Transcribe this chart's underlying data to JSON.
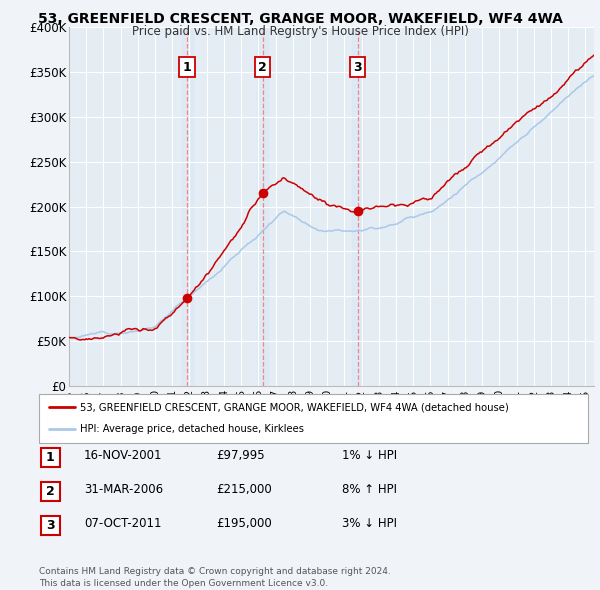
{
  "title": "53, GREENFIELD CRESCENT, GRANGE MOOR, WAKEFIELD, WF4 4WA",
  "subtitle": "Price paid vs. HM Land Registry's House Price Index (HPI)",
  "ylim": [
    0,
    400000
  ],
  "yticks": [
    0,
    50000,
    100000,
    150000,
    200000,
    250000,
    300000,
    350000,
    400000
  ],
  "ytick_labels": [
    "£0",
    "£50K",
    "£100K",
    "£150K",
    "£200K",
    "£250K",
    "£300K",
    "£350K",
    "£400K"
  ],
  "xlim_start": 1995.0,
  "xlim_end": 2025.5,
  "xtick_years": [
    1995,
    1996,
    1997,
    1998,
    1999,
    2000,
    2001,
    2002,
    2003,
    2004,
    2005,
    2006,
    2007,
    2008,
    2009,
    2010,
    2011,
    2012,
    2013,
    2014,
    2015,
    2016,
    2017,
    2018,
    2019,
    2020,
    2021,
    2022,
    2023,
    2024,
    2025
  ],
  "sale_dates": [
    2001.877,
    2006.247,
    2011.769
  ],
  "sale_prices": [
    97995,
    215000,
    195000
  ],
  "sale_labels": [
    "1",
    "2",
    "3"
  ],
  "vline_color": "#ee8888",
  "dot_color": "#cc0000",
  "hpi_line_color": "#aac8e8",
  "price_line_color": "#cc0000",
  "bg_color": "#f0f4f8",
  "plot_bg": "#e4ecf4",
  "grid_color": "#ffffff",
  "legend_label_red": "53, GREENFIELD CRESCENT, GRANGE MOOR, WAKEFIELD, WF4 4WA (detached house)",
  "legend_label_blue": "HPI: Average price, detached house, Kirklees",
  "table_entries": [
    {
      "num": "1",
      "date": "16-NOV-2001",
      "price": "£97,995",
      "hpi": "1% ↓ HPI"
    },
    {
      "num": "2",
      "date": "31-MAR-2006",
      "price": "£215,000",
      "hpi": "8% ↑ HPI"
    },
    {
      "num": "3",
      "date": "07-OCT-2011",
      "price": "£195,000",
      "hpi": "3% ↓ HPI"
    }
  ],
  "footer": "Contains HM Land Registry data © Crown copyright and database right 2024.\nThis data is licensed under the Open Government Licence v3.0."
}
